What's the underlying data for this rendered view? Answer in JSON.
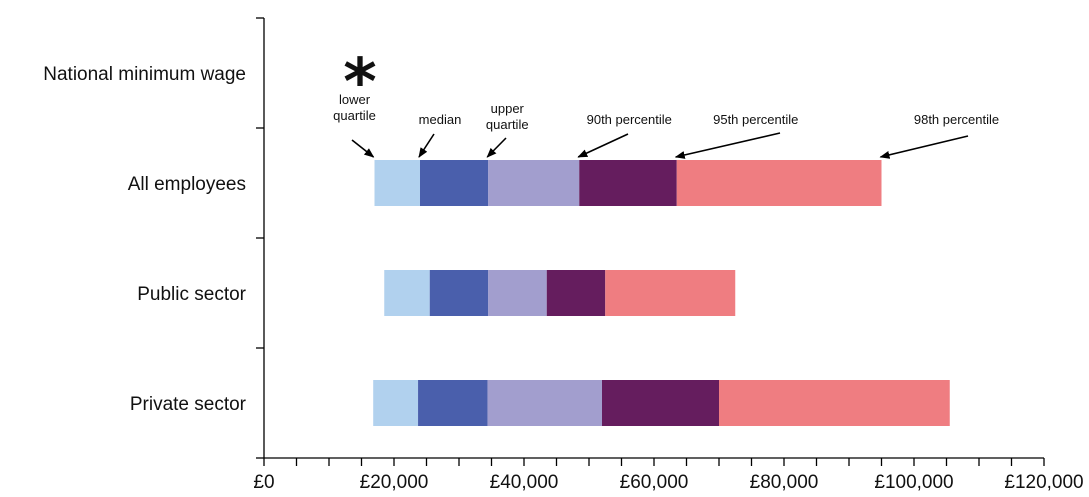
{
  "chart_data": {
    "type": "bar",
    "orientation": "horizontal",
    "stacked_range": true,
    "categories": [
      "National minimum wage",
      "All employees",
      "Public sector",
      "Private sector"
    ],
    "segment_order": [
      "lower quartile",
      "median",
      "upper quartile",
      "90th percentile",
      "95th percentile",
      "98th percentile"
    ],
    "segment_colors": [
      "#b1d1ee",
      "#4a5fac",
      "#a29ece",
      "#651d5e",
      "#ef7d81"
    ],
    "boundaries": {
      "All employees": [
        17000,
        24000,
        34500,
        48500,
        63500,
        95000
      ],
      "Public sector": [
        18500,
        25500,
        34500,
        43500,
        52500,
        72500
      ],
      "Private sector": [
        16800,
        23700,
        34400,
        52000,
        70000,
        105500
      ]
    },
    "markers": [
      {
        "category": "National minimum wage",
        "symbol": "*",
        "x": 14000
      }
    ],
    "annotations": [
      {
        "label": "lower\nquartile",
        "category": "All employees",
        "x": 17000
      },
      {
        "label": "median",
        "category": "All employees",
        "x": 24000
      },
      {
        "label": "upper\nquartile",
        "category": "All employees",
        "x": 34500
      },
      {
        "label": "90th percentile",
        "category": "All employees",
        "x": 48500
      },
      {
        "label": "95th percentile",
        "category": "All employees",
        "x": 63500
      },
      {
        "label": "98th percentile",
        "category": "All employees",
        "x": 95000
      }
    ],
    "xlim": [
      0,
      120000
    ],
    "xticks": [
      0,
      20000,
      40000,
      60000,
      80000,
      100000,
      120000
    ],
    "xtick_labels": [
      "£0",
      "£20,000",
      "£40,000",
      "£60,000",
      "£80,000",
      "£100,000",
      "£120,000"
    ],
    "minor_tick_step": 5000,
    "title": "",
    "xlabel": "",
    "ylabel": "",
    "grid": false
  }
}
